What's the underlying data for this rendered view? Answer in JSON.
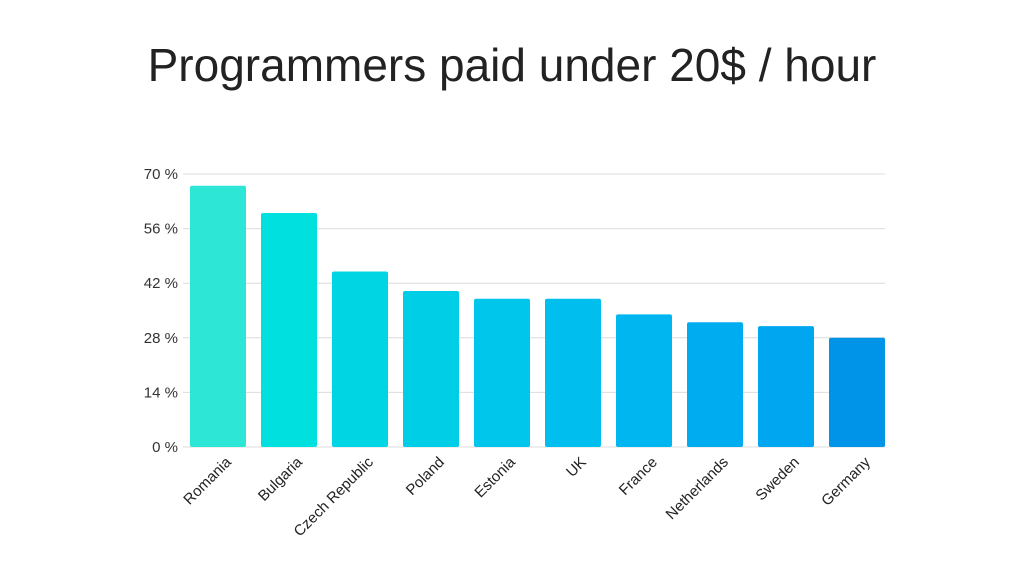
{
  "chart_data": {
    "type": "bar",
    "title": "Programmers paid under 20$ / hour",
    "categories": [
      "Romania",
      "Bulgaria",
      "Czech Republic",
      "Poland",
      "Estonia",
      "UK",
      "France",
      "Netherlands",
      "Sweden",
      "Germany"
    ],
    "values": [
      67,
      60,
      45,
      40,
      38,
      38,
      34,
      32,
      31,
      28
    ],
    "ylim": [
      0,
      70
    ],
    "yticks": [
      0,
      14,
      28,
      42,
      56,
      70
    ],
    "ytick_suffix": " %",
    "grid": true,
    "colors": [
      "#2ee6d6",
      "#00e0de",
      "#00d5e3",
      "#00cde6",
      "#00c6eb",
      "#00bfee",
      "#00b6f0",
      "#00acf0",
      "#00a6ef",
      "#0094e8"
    ]
  }
}
